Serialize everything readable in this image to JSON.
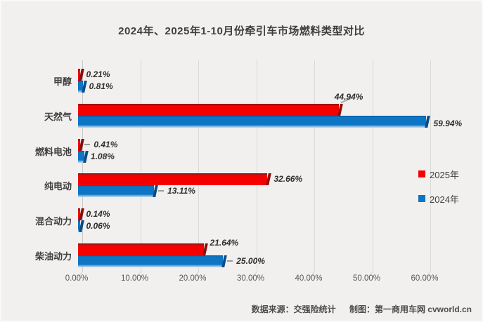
{
  "title": "2024年、2025年1-10月份牵引车市场燃料类型对比",
  "chart_data": {
    "type": "bar",
    "style": "3d-horizontal-bar",
    "orientation": "horizontal",
    "title": "2024年、2025年1-10月份牵引车市场燃料类型对比",
    "categories": [
      "甲醇",
      "天然气",
      "燃料电池",
      "纯电动",
      "混合动力",
      "柴油动力"
    ],
    "series": [
      {
        "name": "2025年",
        "color": "#f40000",
        "values": [
          0.21,
          44.94,
          0.41,
          32.66,
          0.14,
          21.64
        ]
      },
      {
        "name": "2024年",
        "color": "#0e74c4",
        "values": [
          0.81,
          59.94,
          1.08,
          13.11,
          0.06,
          25.0
        ]
      }
    ],
    "value_labels": [
      [
        "0.21%",
        "44.94%",
        "0.41%",
        "32.66%",
        "0.14%",
        "21.64%"
      ],
      [
        "0.81%",
        "59.94%",
        "1.08%",
        "13.11%",
        "0.06%",
        "25.00%"
      ]
    ],
    "x_ticks": [
      "0.00%",
      "10.00%",
      "20.00%",
      "30.00%",
      "40.00%",
      "50.00%",
      "60.00%"
    ],
    "xlim": [
      0,
      60
    ],
    "grid": true,
    "legend_position": "middle-right"
  },
  "footer": {
    "source": "数据来源：交强险统计",
    "credit": "制图：第一商用车网 cvworld.cn"
  },
  "colors": {
    "series_2025": "#f40000",
    "series_2024": "#0e74c4",
    "background": "#f1f0ee",
    "gridline": "#d9d9d9",
    "text": "#3f3f3f"
  }
}
